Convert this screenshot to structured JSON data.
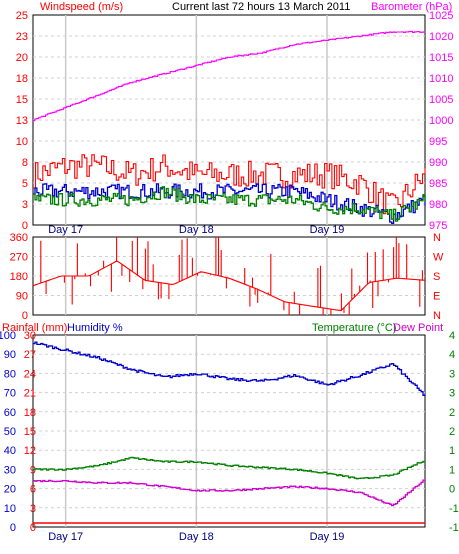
{
  "header": {
    "left_label": "Windspeed (m/s)",
    "title": "Current last 72 hours 13 March 2011",
    "right_label": "Barometer (hPa)"
  },
  "day_labels": [
    "Day 17",
    "Day 18",
    "Day 19"
  ],
  "direction_labels": [
    "N",
    "W",
    "S",
    "E",
    "N"
  ],
  "bottom_header": {
    "rainfall": "Rainfall (mm)",
    "humidity": "Humidity %",
    "temperature": "Temperature (°C)",
    "dewpoint": "Dew Point"
  },
  "colors": {
    "windspeed": "#ff0000",
    "gust": "#ff0000",
    "barometer": "#ff00ff",
    "wind_blue": "#0000cc",
    "wind_green": "#008000",
    "humidity": "#0000cc",
    "temperature": "#008000",
    "dewpoint": "#cc00cc",
    "rainfall": "#ff0000",
    "left_axis_top": "#ff0000",
    "right_axis_top": "#ff00ff",
    "dir_axis": "#ff0000",
    "rain_axis": "#ff0000",
    "humidity_axis": "#0000cc",
    "temp_axis": "#008000"
  },
  "chart_data": [
    {
      "type": "line",
      "xlabel": "",
      "x": [
        0,
        6,
        12,
        18,
        24,
        30,
        36,
        42,
        48,
        54,
        60,
        66,
        72
      ],
      "ylabel_left": "Windspeed (m/s)",
      "ylabel_right": "Barometer (hPa)",
      "ylim_left": [
        0,
        25
      ],
      "yticks_left": [
        "0",
        "3",
        "5",
        "8",
        "10",
        "13",
        "15",
        "18",
        "20",
        "23",
        "25"
      ],
      "ylim_right": [
        975,
        1025
      ],
      "yticks_right": [
        "975",
        "980",
        "985",
        "990",
        "995",
        "1000",
        "1005",
        "1010",
        "1015",
        "1020",
        "1025"
      ],
      "series": [
        {
          "values": [
            6,
            7,
            7,
            6,
            7,
            6,
            6,
            6,
            6,
            6,
            5,
            2,
            6
          ]
        },
        {
          "values": [
            4,
            4,
            4,
            4,
            4,
            4,
            4,
            4,
            4,
            3,
            2,
            1,
            3
          ]
        },
        {
          "values": [
            3,
            3,
            3,
            3,
            4,
            3,
            3,
            3,
            3,
            2,
            2,
            1,
            3
          ]
        },
        {
          "values": [
            1000,
            1003,
            1006,
            1009,
            1011,
            1013,
            1015,
            1016,
            1018,
            1019,
            1020,
            1021,
            1021
          ]
        }
      ]
    },
    {
      "type": "scatter",
      "ylabel_left": "",
      "ylim": [
        0,
        360
      ],
      "yticks": [
        "0",
        "90",
        "180",
        "270",
        "360"
      ],
      "series": [
        {
          "values": [
            135,
            180,
            180,
            250,
            160,
            140,
            200,
            170,
            120,
            60,
            40,
            20,
            150,
            170,
            160
          ]
        }
      ]
    },
    {
      "type": "line",
      "ylim_humidity": [
        0,
        100
      ],
      "yticks_humidity": [
        "0",
        "10",
        "20",
        "30",
        "40",
        "50",
        "60",
        "70",
        "80",
        "90",
        "100"
      ],
      "ylim_rain": [
        0,
        30
      ],
      "yticks_rain": [
        "0",
        "3",
        "6",
        "9",
        "12",
        "15",
        "18",
        "21",
        "24",
        "27",
        "30"
      ],
      "ylim_temp": [
        -1,
        4
      ],
      "yticks_temp": [
        "-1",
        "-1",
        "0",
        "1",
        "1",
        "2",
        "2",
        "3",
        "3",
        "4",
        "4"
      ],
      "series": [
        {
          "name": "Humidity %",
          "values": [
            96,
            92,
            88,
            82,
            78,
            80,
            77,
            76,
            79,
            74,
            79,
            85,
            68
          ]
        },
        {
          "name": "Temperature (°C)",
          "values": [
            0.5,
            0.5,
            0.6,
            0.8,
            0.7,
            0.7,
            0.6,
            0.55,
            0.5,
            0.4,
            0.25,
            0.35,
            0.75
          ]
        },
        {
          "name": "Dew Point",
          "values": [
            0.2,
            0.2,
            0.15,
            0.15,
            0.05,
            -0.05,
            -0.05,
            0.0,
            0.05,
            0.0,
            -0.1,
            -0.45,
            0.25
          ]
        },
        {
          "name": "Rainfall (mm)",
          "values": [
            0,
            0,
            0,
            0,
            0,
            0,
            0,
            0,
            0,
            0,
            0,
            0,
            0
          ]
        }
      ]
    }
  ]
}
